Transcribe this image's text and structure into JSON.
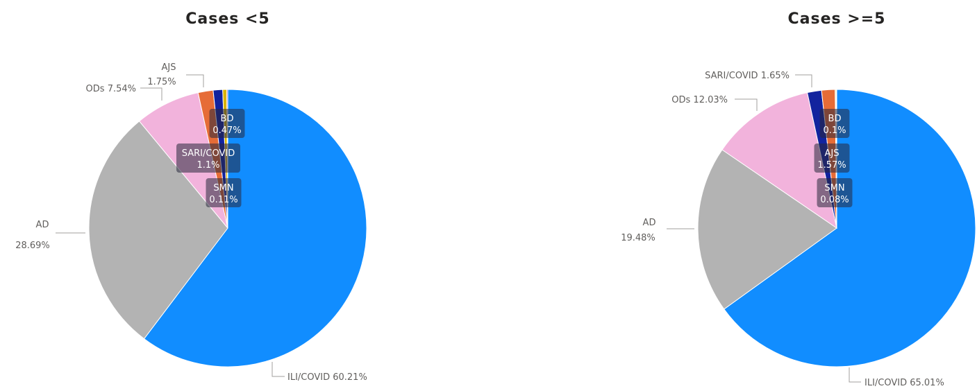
{
  "chart_data": [
    {
      "type": "pie",
      "title": "Cases <5",
      "slices": [
        {
          "label": "ILI/COVID",
          "value": 60.21,
          "display": "60.21%",
          "color": "#118DFF"
        },
        {
          "label": "AD",
          "value": 28.69,
          "display": "28.69%",
          "color": "#B3B3B3"
        },
        {
          "label": "ODs",
          "value": 7.54,
          "display": "7.54%",
          "color": "#F2B3DC"
        },
        {
          "label": "AJS",
          "value": 1.75,
          "display": "1.75%",
          "color": "#E66C37"
        },
        {
          "label": "SARI/COVID",
          "value": 1.1,
          "display": "1.1%",
          "color": "#12239E"
        },
        {
          "label": "BD",
          "value": 0.47,
          "display": "0.47%",
          "color": "#D9B300"
        },
        {
          "label": "SMN",
          "value": 0.11,
          "display": "0.11%",
          "color": "#6B007B"
        }
      ]
    },
    {
      "type": "pie",
      "title": "Cases >=5",
      "slices": [
        {
          "label": "ILI/COVID",
          "value": 65.01,
          "display": "65.01%",
          "color": "#118DFF"
        },
        {
          "label": "AD",
          "value": 19.48,
          "display": "19.48%",
          "color": "#B3B3B3"
        },
        {
          "label": "ODs",
          "value": 12.03,
          "display": "12.03%",
          "color": "#F2B3DC"
        },
        {
          "label": "SARI/COVID",
          "value": 1.65,
          "display": "1.65%",
          "color": "#12239E"
        },
        {
          "label": "AJS",
          "value": 1.57,
          "display": "1.57%",
          "color": "#E66C37"
        },
        {
          "label": "BD",
          "value": 0.1,
          "display": "0.1%",
          "color": "#D9B300"
        },
        {
          "label": "SMN",
          "value": 0.08,
          "display": "0.08%",
          "color": "#6B007B"
        }
      ]
    }
  ]
}
